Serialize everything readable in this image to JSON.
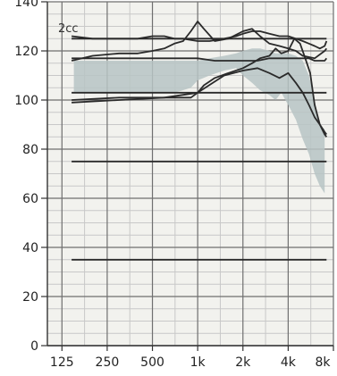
{
  "chart_data": {
    "type": "line",
    "title": "",
    "xlabel": "",
    "ylabel": "",
    "corner_label": "2cc",
    "x_scale": "log",
    "xlim": [
      100,
      8000
    ],
    "ylim": [
      0,
      140
    ],
    "x_ticks": [
      125,
      250,
      500,
      1000,
      2000,
      4000,
      8000
    ],
    "x_tick_labels": [
      "125",
      "250",
      "500",
      "1k",
      "2k",
      "4k",
      "8k"
    ],
    "y_ticks": [
      0,
      20,
      40,
      60,
      80,
      100,
      120,
      140
    ],
    "y_tick_labels": [
      "0",
      "20",
      "40",
      "60",
      "80",
      "100",
      "120",
      "140"
    ],
    "grid": true,
    "colors": {
      "band_fill": "#b7c4c4",
      "band_fill_light": "#d7dede",
      "line": "#2a2a2a",
      "grid": "#6f6f6f",
      "minor_grid": "#c8c8c8",
      "background": "#f2f2ee"
    },
    "bands": [
      {
        "x": [
          150,
          200,
          250,
          300,
          400,
          500,
          600,
          700,
          800,
          900,
          1000,
          1200,
          1500,
          1800,
          2000,
          2300,
          2600,
          3000,
          3300,
          3600,
          4000,
          4500,
          5000,
          5500,
          6000,
          6500,
          7000
        ],
        "upper": [
          116,
          116,
          116,
          116,
          116,
          116,
          116,
          116,
          116,
          116,
          116,
          117,
          118,
          119,
          120,
          121,
          121,
          120,
          119,
          119,
          119,
          118,
          116,
          110,
          100,
          90,
          88
        ],
        "lower": [
          103,
          103,
          103,
          103,
          103,
          103,
          103,
          103,
          104,
          105,
          108,
          110,
          112,
          113,
          110,
          107,
          104,
          102,
          100,
          103,
          98,
          92,
          84,
          78,
          70,
          65,
          62
        ]
      }
    ],
    "series": [
      {
        "x": [
          145,
          7200
        ],
        "values": [
          125,
          125
        ]
      },
      {
        "x": [
          145,
          200,
          300,
          400,
          500,
          600,
          700,
          800,
          1000,
          1200,
          1500,
          1800,
          2000,
          2300,
          2600,
          3000,
          3500,
          4000,
          4500,
          5000,
          5500,
          6000,
          6500,
          7000,
          7200
        ],
        "values": [
          126,
          125,
          125,
          125,
          126,
          126,
          125,
          125,
          124,
          124,
          125,
          126,
          127,
          128,
          128,
          127,
          126,
          126,
          125,
          124,
          123,
          122,
          121,
          122,
          124
        ]
      },
      {
        "x": [
          145,
          200,
          300,
          400,
          500,
          600,
          700,
          800,
          900,
          1000,
          1100,
          1300,
          1600,
          2000,
          2300,
          2600,
          3000,
          3500,
          4000,
          4500,
          5000,
          6000,
          7000,
          7200
        ],
        "values": [
          116,
          118,
          119,
          119,
          120,
          121,
          123,
          124,
          128,
          132,
          129,
          124,
          125,
          128,
          129,
          126,
          123,
          122,
          121,
          120,
          118,
          117,
          120,
          121
        ]
      },
      {
        "x": [
          145,
          200,
          300,
          500,
          800,
          1000,
          1300,
          1600,
          2000,
          2500,
          3000,
          3500,
          4000,
          4500,
          5000,
          5500,
          6000,
          7000,
          7200
        ],
        "values": [
          117,
          117,
          117,
          117,
          117,
          117,
          116,
          116,
          116,
          116,
          117,
          117,
          117,
          117,
          117,
          117,
          116,
          116,
          117
        ]
      },
      {
        "x": [
          145,
          300,
          600,
          1000,
          1500,
          2000,
          2500,
          3000,
          3500,
          4000,
          4500,
          5000,
          5500,
          6000,
          6500,
          7000,
          7200
        ],
        "values": [
          100,
          101,
          101,
          103,
          110,
          112,
          113,
          111,
          109,
          111,
          107,
          103,
          98,
          93,
          90,
          86,
          85
        ]
      },
      {
        "x": [
          145,
          300,
          600,
          900,
          1000,
          1100,
          1300,
          1600,
          2000,
          2300,
          2600,
          3000,
          3300,
          3600,
          4000,
          4400,
          4800,
          5200,
          5600,
          6000,
          6500,
          7000,
          7200
        ],
        "values": [
          99,
          100,
          101,
          101,
          103,
          106,
          109,
          111,
          113,
          115,
          117,
          118,
          121,
          119,
          120,
          125,
          123,
          117,
          111,
          98,
          90,
          87,
          86
        ]
      },
      {
        "x": [
          145,
          7200
        ],
        "values": [
          103,
          103
        ]
      },
      {
        "x": [
          145,
          7200
        ],
        "values": [
          75,
          75
        ]
      },
      {
        "x": [
          145,
          7200
        ],
        "values": [
          35,
          35
        ]
      }
    ]
  }
}
